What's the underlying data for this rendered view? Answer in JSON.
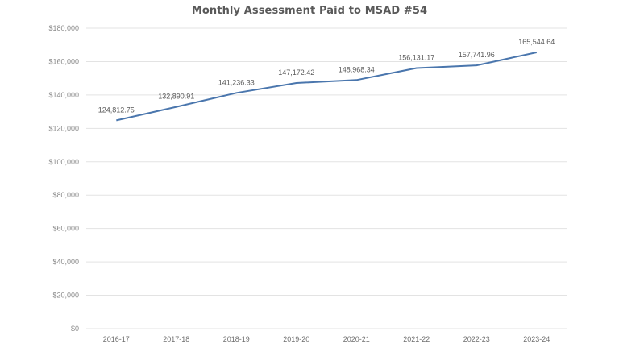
{
  "chart_data": {
    "type": "line",
    "title": "Monthly Assessment Paid to MSAD #54",
    "xlabel": "",
    "ylabel": "",
    "categories": [
      "2016-17",
      "2017-18",
      "2018-19",
      "2019-20",
      "2020-21",
      "2021-22",
      "2022-23",
      "2023-24"
    ],
    "series": [
      {
        "name": "Monthly Assessment",
        "values": [
          124812.75,
          132890.91,
          141236.33,
          147172.42,
          148968.34,
          156131.17,
          157741.96,
          165544.64
        ],
        "labels": [
          "124,812.75",
          "132,890.91",
          "141,236.33",
          "147,172.42",
          "148,968.34",
          "156,131.17",
          "157,741.96",
          "165,544.64"
        ],
        "color": "#4a76ad"
      }
    ],
    "ylim": [
      0,
      180000
    ],
    "yticks": [
      0,
      20000,
      40000,
      60000,
      80000,
      100000,
      120000,
      140000,
      160000,
      180000
    ],
    "ytick_labels": [
      "$0",
      "$20,000",
      "$40,000",
      "$60,000",
      "$80,000",
      "$100,000",
      "$120,000",
      "$140,000",
      "$160,000",
      "$180,000"
    ],
    "grid": true,
    "legend": "none"
  },
  "colors": {
    "line": "#4a76ad",
    "grid": "#e3e3e3",
    "title": "#595959",
    "tick_text": "#8a8a8a"
  }
}
